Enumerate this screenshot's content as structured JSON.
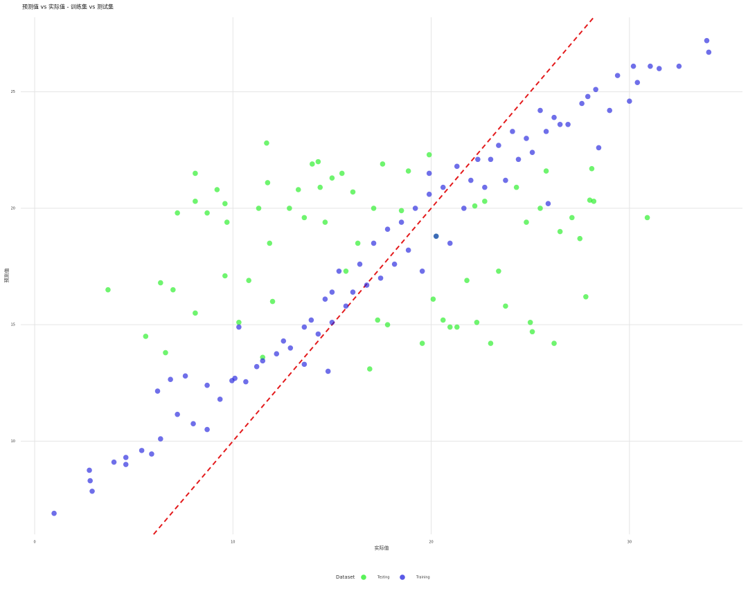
{
  "chart_data": {
    "type": "scatter",
    "title": "预测值 vs 实际值 - 训练集 vs 测试集",
    "x_label": "实际值",
    "y_label": "预测值",
    "legend_title": "Dataset",
    "legend_position": "bottom",
    "xlim": [
      -0.7,
      35.7
    ],
    "xticks": [
      0,
      10,
      20,
      30
    ],
    "ylim": [
      6,
      28.2
    ],
    "yticks": [
      10,
      15,
      20,
      25
    ],
    "grid": true,
    "diagonal": true,
    "diagonal_color": "#e31a1c",
    "series": [
      {
        "name": "Testing",
        "color": "#22ee22",
        "x": [
          3.7,
          5.6,
          6.35,
          6.6,
          6.98,
          7.2,
          8.1,
          8.1,
          8.1,
          8.7,
          9.2,
          9.6,
          9.7,
          9.6,
          10.3,
          10.8,
          11.3,
          11.7,
          11.75,
          11.85,
          12.0,
          11.5,
          12.85,
          13.3,
          13.6,
          14.0,
          14.3,
          14.4,
          14.65,
          15.0,
          15.5,
          16.05,
          16.3,
          16.9,
          17.3,
          17.55,
          17.8,
          18.5,
          18.85,
          19.55,
          19.9,
          20.1,
          20.25,
          20.6,
          20.95,
          21.3,
          21.8,
          22.3,
          22.7,
          23.0,
          23.4,
          23.75,
          24.3,
          24.8,
          25.0,
          25.1,
          25.5,
          25.8,
          26.2,
          26.5,
          27.1,
          27.5,
          27.8,
          28.0,
          28.2,
          28.1,
          30.9,
          22.2,
          17.1,
          15.7
        ],
        "values": [
          16.5,
          14.5,
          16.8,
          13.8,
          16.5,
          19.8,
          21.5,
          20.3,
          15.5,
          19.8,
          20.8,
          20.2,
          19.4,
          17.1,
          15.1,
          16.9,
          20.0,
          22.8,
          21.1,
          18.5,
          16.0,
          13.6,
          20.0,
          20.8,
          19.6,
          21.9,
          22.0,
          20.9,
          19.4,
          21.3,
          21.5,
          20.7,
          18.5,
          13.1,
          15.2,
          21.9,
          15.0,
          19.9,
          21.6,
          14.2,
          22.3,
          16.1,
          18.8,
          15.2,
          14.9,
          14.9,
          16.9,
          15.1,
          20.3,
          14.2,
          17.3,
          15.8,
          20.9,
          19.4,
          15.1,
          14.7,
          20.0,
          21.6,
          14.2,
          19.0,
          19.6,
          18.7,
          16.2,
          20.35,
          20.3,
          21.7,
          19.6,
          20.1,
          20.0,
          17.3
        ]
      },
      {
        "name": "Training",
        "color": "#2222dd",
        "x": [
          0.98,
          2.76,
          2.8,
          2.9,
          4.0,
          4.6,
          4.6,
          5.4,
          5.9,
          6.35,
          6.2,
          6.85,
          7.2,
          7.6,
          8.0,
          8.7,
          9.35,
          9.95,
          10.1,
          10.65,
          11.2,
          11.5,
          12.2,
          12.55,
          12.9,
          13.6,
          13.95,
          14.3,
          14.65,
          15.0,
          15.0,
          15.35,
          15.7,
          16.05,
          16.4,
          16.75,
          17.1,
          17.45,
          17.8,
          18.15,
          18.5,
          18.85,
          19.2,
          19.55,
          19.9,
          20.25,
          20.6,
          20.95,
          21.3,
          21.65,
          22.0,
          22.35,
          22.7,
          23.0,
          23.4,
          23.75,
          24.1,
          24.4,
          24.8,
          25.1,
          25.5,
          25.8,
          26.2,
          26.5,
          26.9,
          27.6,
          27.9,
          28.3,
          28.45,
          29.0,
          29.4,
          30.0,
          30.2,
          30.4,
          31.05,
          31.5,
          32.5,
          33.9,
          34.0,
          25.9,
          8.7,
          10.3,
          13.6,
          14.8,
          19.9
        ],
        "values": [
          6.9,
          8.75,
          8.3,
          7.85,
          9.1,
          9.3,
          9.0,
          9.6,
          9.45,
          10.1,
          12.15,
          12.65,
          11.15,
          12.8,
          10.75,
          12.4,
          11.8,
          12.6,
          12.7,
          12.55,
          13.2,
          13.45,
          13.75,
          14.3,
          14.0,
          14.9,
          15.2,
          14.6,
          16.1,
          16.4,
          15.1,
          17.3,
          15.8,
          16.4,
          17.6,
          16.7,
          18.5,
          17.0,
          19.1,
          17.6,
          19.4,
          18.2,
          20.0,
          17.3,
          20.6,
          18.8,
          20.9,
          18.5,
          21.8,
          20.0,
          21.2,
          22.1,
          20.9,
          22.1,
          22.7,
          21.2,
          23.3,
          22.1,
          23.0,
          22.4,
          24.2,
          23.3,
          23.9,
          23.6,
          23.6,
          24.5,
          24.8,
          25.1,
          22.6,
          24.2,
          25.7,
          24.6,
          26.1,
          25.4,
          26.1,
          26.0,
          26.1,
          27.2,
          26.7,
          20.2,
          10.5,
          14.9,
          13.3,
          13.0,
          21.5
        ]
      }
    ]
  }
}
